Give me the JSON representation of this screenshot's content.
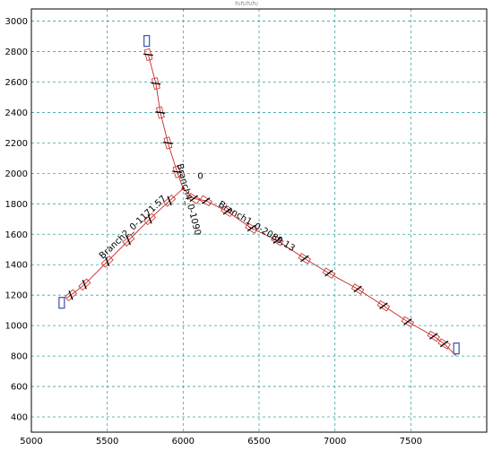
{
  "chart_data": {
    "type": "scatter",
    "title": "",
    "xlabel": "",
    "ylabel": "",
    "xlim": [
      5000,
      8000
    ],
    "ylim": [
      300,
      3080
    ],
    "grid": true,
    "x_ticks": [
      5000,
      5500,
      6000,
      6500,
      7000,
      7500
    ],
    "y_ticks": [
      400,
      600,
      800,
      1000,
      1200,
      1400,
      1600,
      1800,
      2000,
      2200,
      2400,
      2600,
      2800,
      3000
    ],
    "junction": {
      "x": 6000,
      "y": 1900,
      "label": "0"
    },
    "branches": [
      {
        "name": "Branch1_0-2089.13",
        "start": [
          6000,
          1900
        ],
        "end": [
          7800,
          800
        ],
        "end_marker": [
          7800,
          850
        ],
        "points": [
          [
            6070,
            1835
          ],
          [
            6150,
            1820
          ],
          [
            6290,
            1750
          ],
          [
            6450,
            1640
          ],
          [
            6620,
            1560
          ],
          [
            6800,
            1440
          ],
          [
            6960,
            1345
          ],
          [
            7150,
            1240
          ],
          [
            7320,
            1130
          ],
          [
            7480,
            1025
          ],
          [
            7650,
            930
          ],
          [
            7720,
            880
          ]
        ]
      },
      {
        "name": "Branch2_0-1171.57",
        "start": [
          6000,
          1900
        ],
        "end": [
          5230,
          1180
        ],
        "end_marker": [
          5200,
          1150
        ],
        "points": [
          [
            5910,
            1820
          ],
          [
            5780,
            1700
          ],
          [
            5640,
            1560
          ],
          [
            5500,
            1420
          ],
          [
            5350,
            1270
          ],
          [
            5260,
            1200
          ]
        ]
      },
      {
        "name": "Branch4_0-1090",
        "start": [
          6000,
          1900
        ],
        "end": [
          5770,
          2780
        ],
        "end_marker": [
          5760,
          2870
        ],
        "points": [
          [
            5770,
            2780
          ],
          [
            5820,
            2590
          ],
          [
            5850,
            2400
          ],
          [
            5900,
            2200
          ],
          [
            5960,
            2010
          ]
        ]
      }
    ]
  },
  "header": {
    "title_text": "ԽԽԽԽ"
  },
  "colors": {
    "grid": "#39a3a3",
    "line": "#c62828",
    "symbol": "#000000",
    "end_box": "#3a4fb0",
    "frame": "#000000"
  }
}
